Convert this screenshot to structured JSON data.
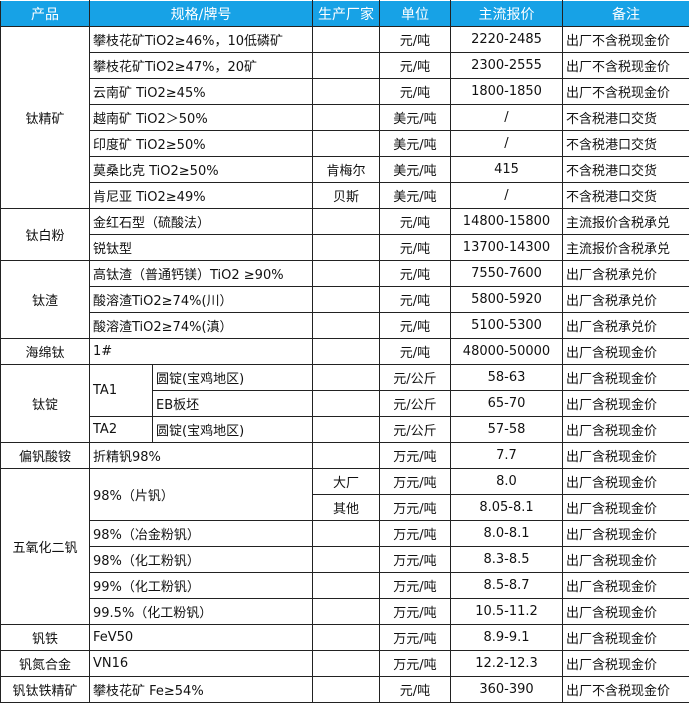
{
  "colors": {
    "header_bg": "#17a2e6",
    "header_text": "#ffffff",
    "border": "#222222"
  },
  "headers": {
    "product": "产品",
    "spec": "规格/牌号",
    "maker": "生产厂家",
    "unit": "单位",
    "price": "主流报价",
    "note": "备注"
  },
  "products": [
    {
      "name": "钛精矿",
      "rows": [
        {
          "spec": "攀枝花矿TiO2≥46%，10低磷矿",
          "maker": "",
          "unit": "元/吨",
          "price": "2220-2485",
          "note": "出厂不含税现金价"
        },
        {
          "spec": "攀枝花矿TiO2≥47%，20矿",
          "maker": "",
          "unit": "元/吨",
          "price": "2300-2555",
          "note": "出厂不含税现金价"
        },
        {
          "spec": "云南矿 TiO2≥45%",
          "maker": "",
          "unit": "元/吨",
          "price": "1800-1850",
          "note": "出厂不含税现金价"
        },
        {
          "spec": "越南矿 TiO2＞50%",
          "maker": "",
          "unit": "美元/吨",
          "price": "/",
          "note": "不含税港口交货"
        },
        {
          "spec": "印度矿 TiO2≥50%",
          "maker": "",
          "unit": "美元/吨",
          "price": "/",
          "note": "不含税港口交货"
        },
        {
          "spec": "莫桑比克 TiO2≥50%",
          "maker": "肯梅尔",
          "unit": "美元/吨",
          "price": "415",
          "note": "不含税港口交货"
        },
        {
          "spec": "肯尼亚 TiO2≥49%",
          "maker": "贝斯",
          "unit": "美元/吨",
          "price": "/",
          "note": "不含税港口交货"
        }
      ]
    },
    {
      "name": "钛白粉",
      "rows": [
        {
          "spec": "金红石型（硫酸法）",
          "maker": "",
          "unit": "元/吨",
          "price": "14800-15800",
          "note": "主流报价含税承兑"
        },
        {
          "spec": "锐钛型",
          "maker": "",
          "unit": "元/吨",
          "price": "13700-14300",
          "note": "主流报价含税承兑"
        }
      ]
    },
    {
      "name": "钛渣",
      "rows": [
        {
          "spec": "高钛渣（普通钙镁）TiO2 ≥90%",
          "maker": "",
          "unit": "元/吨",
          "price": "7550-7600",
          "note": "出厂含税承兑价"
        },
        {
          "spec": "酸溶渣TiO2≥74%(川）",
          "maker": "",
          "unit": "元/吨",
          "price": "5800-5920",
          "note": "出厂含税承兑价"
        },
        {
          "spec": "酸溶渣TiO2≥74%(滇）",
          "maker": "",
          "unit": "元/吨",
          "price": "5100-5300",
          "note": "出厂含税承兑价"
        }
      ]
    },
    {
      "name": "海绵钛",
      "rows": [
        {
          "spec": "1#",
          "maker": "",
          "unit": "元/吨",
          "price": "48000-50000",
          "note": "出厂含税现金价"
        }
      ]
    },
    {
      "name": "钛锭",
      "rows": [
        {
          "spec": "TA1",
          "sub": "圆锭(宝鸡地区)",
          "maker": "",
          "unit": "元/公斤",
          "price": "58-63",
          "note": "出厂含税现金价"
        },
        {
          "spec": null,
          "sub": "EB板坯",
          "maker": "",
          "unit": "元/公斤",
          "price": "65-70",
          "note": "出厂含税现金价"
        },
        {
          "spec": "TA2",
          "sub": "圆锭(宝鸡地区)",
          "maker": "",
          "unit": "元/公斤",
          "price": "57-58",
          "note": "出厂含税现金价"
        }
      ]
    },
    {
      "name": "偏钒酸铵",
      "rows": [
        {
          "spec": "折精钒98%",
          "maker": "",
          "unit": "万元/吨",
          "price": "7.7",
          "note": "出厂含税现金价"
        }
      ]
    },
    {
      "name": "五氧化二钒",
      "rows": [
        {
          "spec": "98%（片钒）",
          "maker": "大厂",
          "unit": "万元/吨",
          "price": "8.0",
          "note": "出厂含税现金价"
        },
        {
          "spec": null,
          "maker": "其他",
          "unit": "万元/吨",
          "price": "8.05-8.1",
          "note": "出厂含税现金价"
        },
        {
          "spec": "98%（冶金粉钒）",
          "maker": "",
          "unit": "万元/吨",
          "price": "8.0-8.1",
          "note": "出厂含税现金价"
        },
        {
          "spec": "98%（化工粉钒）",
          "maker": "",
          "unit": "万元/吨",
          "price": "8.3-8.5",
          "note": "出厂含税现金价"
        },
        {
          "spec": "99%（化工粉钒）",
          "maker": "",
          "unit": "万元/吨",
          "price": "8.5-8.7",
          "note": "出厂含税现金价"
        },
        {
          "spec": "99.5%（化工粉钒）",
          "maker": "",
          "unit": "万元/吨",
          "price": "10.5-11.2",
          "note": "出厂含税现金价"
        }
      ]
    },
    {
      "name": "钒铁",
      "rows": [
        {
          "spec": "FeV50",
          "maker": "",
          "unit": "万元/吨",
          "price": "8.9-9.1",
          "note": "出厂含税现金价"
        }
      ]
    },
    {
      "name": "钒氮合金",
      "rows": [
        {
          "spec": "VN16",
          "maker": "",
          "unit": "万元/吨",
          "price": "12.2-12.3",
          "note": "出厂含税现金价"
        }
      ]
    },
    {
      "name": "钒钛铁精矿",
      "rows": [
        {
          "spec": "攀枝花矿 Fe≥54%",
          "maker": "",
          "unit": "元/吨",
          "price": "360-390",
          "note": "出厂不含税现金价"
        }
      ]
    }
  ]
}
